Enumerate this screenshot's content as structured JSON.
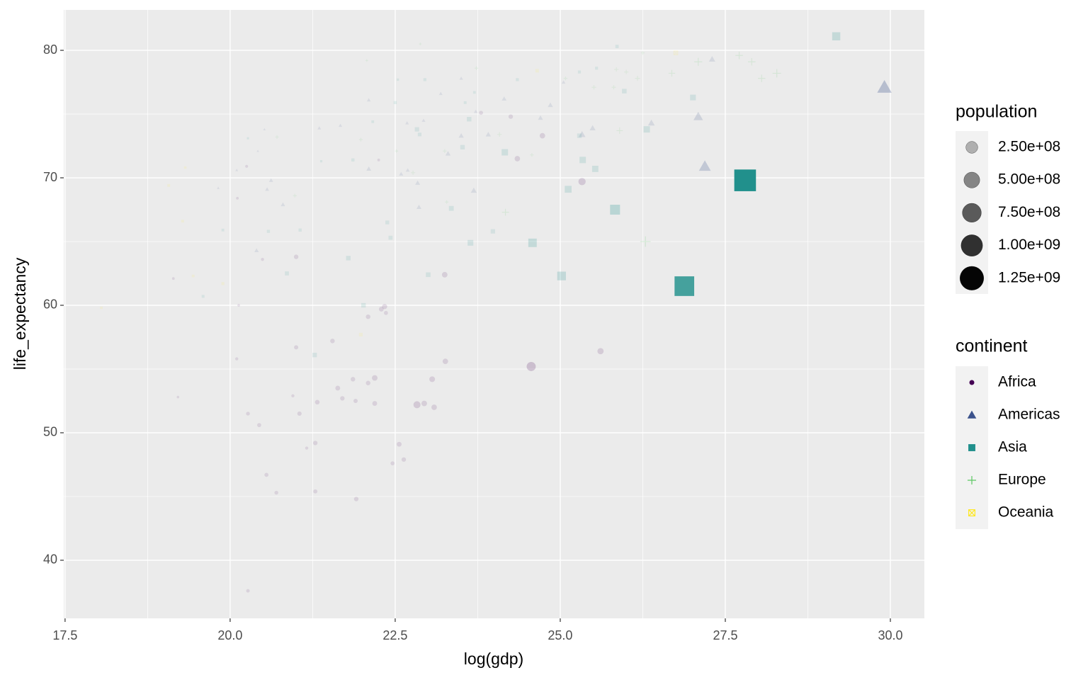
{
  "chart_data": {
    "type": "scatter",
    "x_label": "log(gdp)",
    "y_label": "life_expectancy",
    "xlim": [
      17.48,
      30.515
    ],
    "ylim": [
      35.44,
      83.17
    ],
    "xticks": [
      {
        "value": 17.5,
        "label": "17.5"
      },
      {
        "value": 20,
        "label": "20.0"
      },
      {
        "value": 22.5,
        "label": "22.5"
      },
      {
        "value": 25,
        "label": "25.0"
      },
      {
        "value": 27.5,
        "label": "27.5"
      },
      {
        "value": 30,
        "label": "30.0"
      }
    ],
    "yticks": [
      40,
      50,
      60,
      70,
      80
    ],
    "grid": true,
    "size_legend_title": "population",
    "size_legend": [
      {
        "value": 250000000,
        "label": "2.50e+08"
      },
      {
        "value": 500000000,
        "label": "5.00e+08"
      },
      {
        "value": 750000000,
        "label": "7.50e+08"
      },
      {
        "value": 1000000000,
        "label": "1.00e+09"
      },
      {
        "value": 1250000000,
        "label": "1.25e+09"
      }
    ],
    "color_legend_title": "continent",
    "series": [
      {
        "name": "Africa",
        "color": "#440154",
        "shape": "circle",
        "x": [
          19.14,
          19.21,
          20.1,
          20.13,
          20.11,
          20.25,
          20.27,
          20.27,
          20.44,
          20.49,
          20.55,
          20.7,
          20.95,
          21.0,
          21.0,
          21.05,
          21.16,
          21.29,
          21.29,
          21.32,
          21.55,
          21.63,
          21.7,
          21.86,
          21.9,
          21.91,
          22.09,
          22.09,
          22.19,
          22.19,
          22.25,
          22.29,
          22.34,
          22.36,
          22.46,
          22.56,
          22.63,
          22.83,
          22.94,
          23.06,
          23.09,
          23.25,
          23.26,
          23.8,
          24.25,
          24.35,
          24.56,
          24.73,
          25.33,
          25.61
        ],
        "values": [
          62.1,
          52.8,
          55.8,
          60.0,
          68.4,
          70.9,
          51.5,
          37.6,
          50.6,
          63.6,
          46.7,
          45.3,
          52.9,
          56.7,
          63.8,
          51.5,
          48.8,
          49.2,
          45.4,
          52.4,
          57.2,
          53.5,
          52.7,
          54.2,
          52.5,
          44.8,
          53.9,
          59.1,
          54.3,
          52.3,
          71.4,
          59.7,
          59.9,
          59.4,
          47.6,
          49.1,
          47.9,
          52.2,
          52.3,
          54.2,
          52.0,
          62.4,
          55.6,
          75.1,
          74.8,
          71.5,
          55.2,
          73.3,
          69.7,
          56.4
        ],
        "sizes": [
          1000000,
          500000,
          3000000,
          1000000,
          1000000,
          2000000,
          8000000,
          6000000,
          10000000,
          3000000,
          10000000,
          8000000,
          3000000,
          12000000,
          15000000,
          13000000,
          3000000,
          15000000,
          11000000,
          17000000,
          16000000,
          20000000,
          15000000,
          16000000,
          12000000,
          15000000,
          16000000,
          16000000,
          33000000,
          20000000,
          1200000,
          20000000,
          25000000,
          10000000,
          10000000,
          20000000,
          15000000,
          65000000,
          32000000,
          34000000,
          30000000,
          31000000,
          30000000,
          10000000,
          15000000,
          30000000,
          130000000,
          30000000,
          70000000,
          45000000
        ]
      },
      {
        "name": "Americas",
        "color": "#3B528B",
        "shape": "triangle",
        "x": [
          19.82,
          20.1,
          20.42,
          20.52,
          20.4,
          20.56,
          20.62,
          20.8,
          21.35,
          21.67,
          22.1,
          22.1,
          22.59,
          22.68,
          22.69,
          22.84,
          22.86,
          22.93,
          23.19,
          23.3,
          23.5,
          23.5,
          23.69,
          23.72,
          23.91,
          24.15,
          24.7,
          24.85,
          25.05,
          25.33,
          25.49,
          26.38,
          27.09,
          27.19,
          27.3,
          29.91
        ],
        "values": [
          69.2,
          70.6,
          72.1,
          73.8,
          64.3,
          69.1,
          69.8,
          67.9,
          73.9,
          74.1,
          76.1,
          70.7,
          70.3,
          74.3,
          70.6,
          69.6,
          67.7,
          74.5,
          76.6,
          71.9,
          77.8,
          73.3,
          69.0,
          75.2,
          73.4,
          76.2,
          74.7,
          75.7,
          77.5,
          73.4,
          73.9,
          74.3,
          74.8,
          70.9,
          79.3,
          77.1
        ],
        "sizes": [
          200000,
          300000,
          100000,
          100000,
          8000000,
          5000000,
          6000000,
          8000000,
          3000000,
          3000000,
          4000000,
          12000000,
          7000000,
          3000000,
          5000000,
          13000000,
          12000000,
          3000000,
          3000000,
          15000000,
          3000000,
          15000000,
          25000000,
          4000000,
          16000000,
          11000000,
          13000000,
          15000000,
          4000000,
          40000000,
          25000000,
          38000000,
          100000000,
          180000000,
          31000000,
          290000000
        ]
      },
      {
        "name": "Asia",
        "color": "#21908C",
        "shape": "square",
        "x": [
          20.27,
          19.89,
          19.59,
          20.58,
          20.86,
          21.06,
          21.28,
          21.38,
          21.79,
          21.86,
          22.02,
          22.16,
          22.38,
          22.43,
          22.5,
          22.54,
          22.83,
          22.87,
          22.95,
          23.0,
          23.35,
          23.52,
          23.56,
          23.62,
          23.64,
          23.7,
          23.98,
          24.16,
          24.35,
          24.58,
          25.02,
          25.12,
          25.29,
          25.29,
          25.34,
          25.53,
          25.55,
          25.83,
          25.86,
          25.97,
          26.31,
          27.01,
          26.88,
          27.8,
          29.18
        ],
        "values": [
          73.1,
          65.9,
          60.7,
          65.8,
          62.5,
          65.9,
          56.1,
          71.3,
          63.7,
          71.4,
          60.0,
          74.4,
          66.5,
          65.3,
          75.9,
          77.7,
          73.8,
          73.4,
          77.7,
          62.4,
          67.6,
          72.4,
          75.9,
          74.6,
          64.9,
          76.7,
          65.8,
          72.0,
          77.7,
          64.9,
          62.3,
          69.1,
          78.3,
          73.3,
          71.4,
          70.7,
          78.6,
          67.5,
          80.3,
          76.8,
          73.8,
          76.3,
          61.5,
          69.8,
          81.1
        ],
        "sizes": [
          300000,
          2000000,
          3000000,
          5000000,
          15000000,
          5000000,
          22000000,
          600000,
          23000000,
          5000000,
          23000000,
          2000000,
          12000000,
          15000000,
          5000000,
          700000,
          20000000,
          10000000,
          4000000,
          25000000,
          28000000,
          22000000,
          2500000,
          23000000,
          48000000,
          2000000,
          20000000,
          65000000,
          4000000,
          140000000,
          150000000,
          80000000,
          4000000,
          22000000,
          65000000,
          62000000,
          4000000,
          210000000,
          7000000,
          24000000,
          65000000,
          48000000,
          1030000000,
          1280000000,
          127000000
        ]
      },
      {
        "name": "Europe",
        "color": "#5DC863",
        "shape": "plus",
        "x": [
          20.71,
          20.98,
          21.98,
          22.07,
          22.52,
          22.77,
          22.88,
          23.25,
          23.28,
          23.73,
          24.08,
          24.17,
          24.57,
          25.08,
          25.51,
          25.81,
          25.85,
          25.9,
          26.0,
          26.17,
          26.25,
          26.29,
          26.69,
          27.09,
          27.71,
          27.9,
          28.05,
          28.28
        ],
        "values": [
          73.2,
          68.6,
          73.0,
          79.2,
          72.1,
          70.4,
          80.5,
          72.1,
          68.1,
          78.6,
          73.4,
          67.3,
          71.8,
          77.8,
          77.1,
          77.1,
          78.5,
          73.7,
          78.3,
          77.8,
          79.8,
          65.0,
          78.2,
          79.1,
          79.6,
          79.1,
          77.8,
          78.2
        ],
        "sizes": [
          3000000,
          4000000,
          4000000,
          300000,
          2000000,
          8000000,
          300000,
          5000000,
          3000000,
          4000000,
          10000000,
          48000000,
          4000000,
          5000000,
          10000000,
          8000000,
          9000000,
          38000000,
          8000000,
          16000000,
          5000000,
          145000000,
          40000000,
          70000000,
          60000000,
          59000000,
          57000000,
          82000000
        ]
      },
      {
        "name": "Oceania",
        "color": "#FDE725",
        "shape": "square-cross",
        "x": [
          18.05,
          19.07,
          19.32,
          19.28,
          19.44,
          19.89,
          21.98,
          24.65,
          26.75
        ],
        "values": [
          59.8,
          69.4,
          70.8,
          66.6,
          62.3,
          61.7,
          57.7,
          78.4,
          79.8
        ],
        "sizes": [
          100000,
          200000,
          100000,
          300000,
          200000,
          800000,
          5000000,
          4000000,
          20000000
        ]
      }
    ]
  }
}
